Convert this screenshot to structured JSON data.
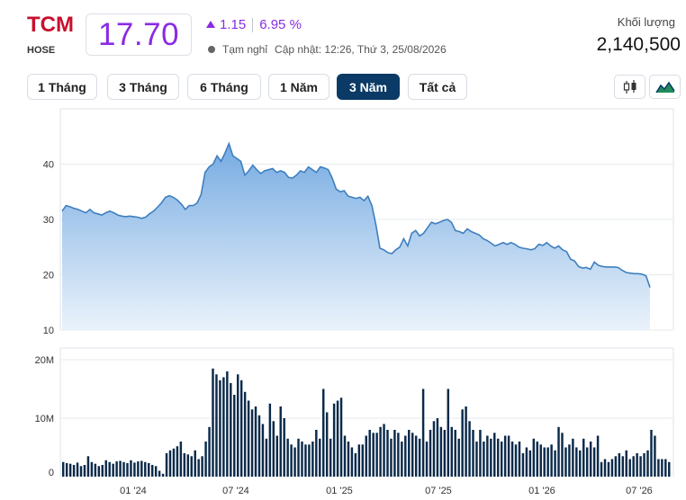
{
  "header": {
    "ticker": "TCM",
    "exchange": "HOSE",
    "price": "17.70",
    "change": "1.15",
    "change_pct": "6.95 %",
    "status": "Tạm nghỉ",
    "updated": "Cập nhật: 12:26, Thứ 3, 25/08/2026",
    "volume_label": "Khối lượng",
    "volume_value": "2,140,500",
    "accent_color": "#8a2be2",
    "ticker_color": "#c8102e"
  },
  "range_tabs": [
    {
      "label": "1 Tháng",
      "active": false
    },
    {
      "label": "3 Tháng",
      "active": false
    },
    {
      "label": "6 Tháng",
      "active": false
    },
    {
      "label": "1 Năm",
      "active": false
    },
    {
      "label": "3 Năm",
      "active": true
    },
    {
      "label": "Tất cả",
      "active": false
    }
  ],
  "chart_type_buttons": [
    {
      "icon": "candlestick-icon"
    },
    {
      "icon": "area-chart-icon",
      "active": true
    }
  ],
  "chart_data": [
    {
      "type": "area",
      "ylim": [
        10,
        50
      ],
      "y_ticks": [
        "10",
        "20",
        "30",
        "40"
      ],
      "x_ticks": [
        "01 '24",
        "07 '24",
        "01 '25",
        "07 '25",
        "01 '26",
        "07 '26"
      ],
      "series": [
        {
          "values": [
            31.5,
            32.5,
            32.3,
            32,
            31.8,
            31.5,
            31.2,
            31.8,
            31.2,
            31,
            30.8,
            31.2,
            31.5,
            31.2,
            30.8,
            30.6,
            30.5,
            30.6,
            30.5,
            30.4,
            30.2,
            30.4,
            31,
            31.5,
            32.2,
            33,
            34,
            34.3,
            34,
            33.5,
            32.8,
            31.8,
            32.5,
            32.5,
            33,
            34.5,
            38.5,
            39.5,
            40,
            41.5,
            40.5,
            42,
            43.7,
            41.5,
            41,
            40.5,
            38,
            38.8,
            39.8,
            39,
            38.3,
            38.8,
            39,
            39.2,
            38.5,
            38.8,
            38.5,
            37.6,
            37.5,
            38,
            38.8,
            38.5,
            39.5,
            39,
            38.5,
            39.5,
            39.3,
            39,
            37.5,
            35.5,
            35,
            35.2,
            34.2,
            34,
            33.8,
            34,
            33.4,
            34.2,
            32.5,
            29,
            24.8,
            24.5,
            24,
            23.8,
            24.5,
            25,
            26.5,
            25.2,
            27.5,
            28,
            27,
            27.5,
            28.5,
            29.5,
            29.2,
            29.5,
            29.8,
            30,
            29.5,
            28,
            27.8,
            27.5,
            28.3,
            27.8,
            27.5,
            27.2,
            26.5,
            26.2,
            25.7,
            25.2,
            25.5,
            25.8,
            25.5,
            25.8,
            25.5,
            25,
            24.8,
            24.7,
            24.5,
            24.7,
            25.5,
            25.3,
            25.8,
            25.2,
            24.8,
            25.2,
            24.5,
            24.2,
            22.8,
            22.5,
            21.5,
            21.2,
            21.3,
            21,
            22.3,
            21.7,
            21.5,
            21.4,
            21.4,
            21.4,
            21.3,
            20.8,
            20.4,
            20.3,
            20.2,
            20.2,
            20.1,
            19.8,
            17.7
          ]
        }
      ]
    },
    {
      "type": "bar",
      "ylim": [
        0,
        22
      ],
      "y_ticks": [
        "0",
        "10M",
        "20M"
      ],
      "series": [
        {
          "values": [
            2.5,
            2.3,
            2.2,
            2.0,
            2.4,
            1.8,
            2.0,
            3.5,
            2.5,
            2.2,
            1.8,
            2.0,
            2.8,
            2.5,
            2.2,
            2.6,
            2.7,
            2.5,
            2.3,
            2.8,
            2.4,
            2.6,
            2.7,
            2.5,
            2.3,
            2.0,
            1.8,
            1.0,
            0.5,
            4.0,
            4.5,
            4.8,
            5.2,
            6.0,
            4.0,
            3.8,
            3.5,
            4.5,
            3.0,
            3.5,
            6.0,
            8.5,
            18.5,
            17.5,
            16.5,
            17.0,
            18.0,
            16.0,
            14.0,
            17.5,
            16.5,
            14.5,
            13.0,
            11.5,
            12.0,
            10.5,
            9.0,
            6.5,
            12.5,
            9.5,
            7.0,
            12.0,
            10.0,
            6.5,
            5.5,
            5.0,
            6.5,
            6.0,
            5.5,
            5.5,
            6.0,
            8.0,
            6.5,
            15.0,
            11.0,
            6.5,
            12.5,
            13.0,
            13.5,
            7.0,
            6.0,
            5.0,
            4.0,
            5.5,
            5.5,
            7.0,
            8.0,
            7.5,
            7.5,
            8.5,
            9.0,
            8.0,
            6.5,
            8.0,
            7.5,
            6.0,
            7.0,
            8.0,
            7.5,
            7.0,
            6.5,
            15.0,
            6.0,
            8.0,
            9.5,
            10.0,
            8.5,
            8.0,
            15.0,
            8.5,
            8.0,
            6.5,
            11.5,
            12.0,
            9.5,
            8.0,
            6.0,
            8.0,
            6.0,
            7.0,
            6.5,
            7.5,
            6.5,
            6.0,
            7.0,
            7.0,
            6.0,
            5.5,
            6.0,
            4.0,
            5.0,
            4.5,
            6.5,
            6.0,
            5.5,
            5.0,
            5.0,
            5.5,
            4.5,
            8.5,
            7.5,
            5.0,
            5.5,
            6.5,
            5.0,
            4.5,
            6.5,
            5.0,
            6.0,
            5.0,
            7.0,
            2.5,
            3.0,
            2.5,
            3.0,
            3.5,
            4.0,
            3.5,
            4.5,
            3.0,
            3.5,
            4.0,
            3.5,
            4.0,
            4.5,
            8.0,
            7.0,
            3.0,
            3.0,
            3.0,
            2.5
          ]
        }
      ]
    }
  ]
}
